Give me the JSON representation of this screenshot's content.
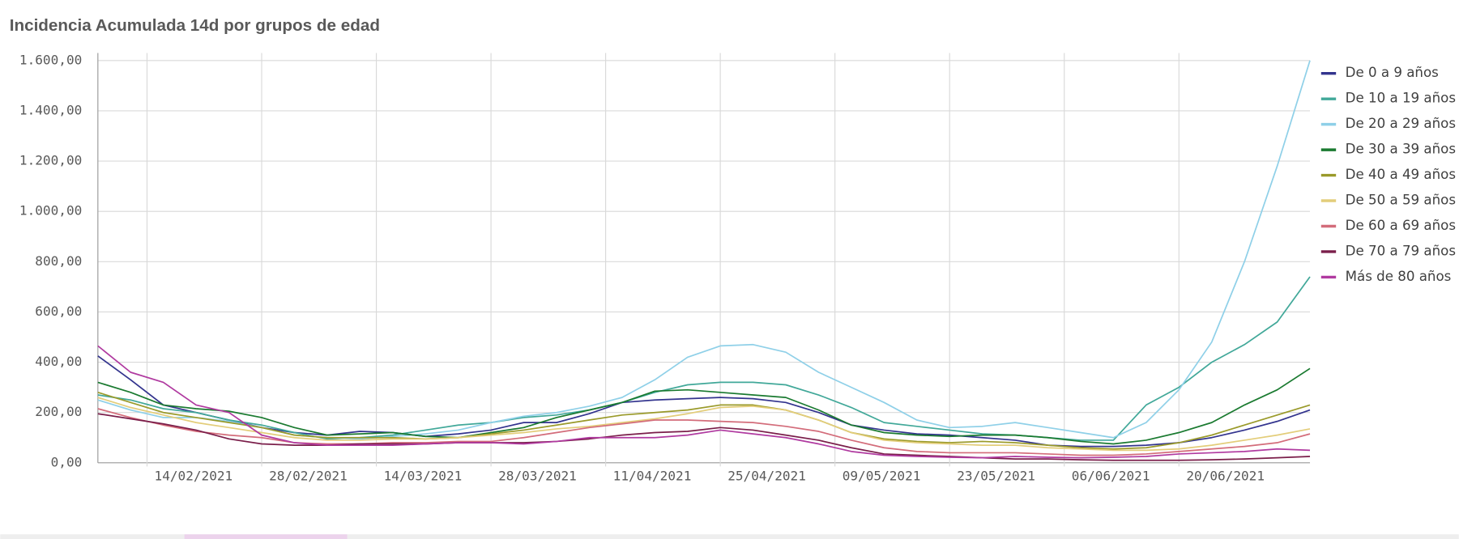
{
  "chart_data": {
    "type": "line",
    "title": "Incidencia Acumulada 14d por grupos de edad",
    "x": [
      "08/02/2021",
      "12/02/2021",
      "16/02/2021",
      "20/02/2021",
      "24/02/2021",
      "28/02/2021",
      "04/03/2021",
      "08/03/2021",
      "12/03/2021",
      "16/03/2021",
      "20/03/2021",
      "24/03/2021",
      "28/03/2021",
      "01/04/2021",
      "05/04/2021",
      "09/04/2021",
      "13/04/2021",
      "17/04/2021",
      "21/04/2021",
      "25/04/2021",
      "29/04/2021",
      "03/05/2021",
      "07/05/2021",
      "11/05/2021",
      "15/05/2021",
      "19/05/2021",
      "23/05/2021",
      "27/05/2021",
      "31/05/2021",
      "04/06/2021",
      "08/06/2021",
      "12/06/2021",
      "16/06/2021",
      "20/06/2021",
      "24/06/2021",
      "28/06/2021",
      "02/07/2021",
      "06/07/2021"
    ],
    "xlim": [
      "08/02/2021",
      "06/07/2021"
    ],
    "xticks": [
      "14/02/2021",
      "28/02/2021",
      "14/03/2021",
      "28/03/2021",
      "11/04/2021",
      "25/04/2021",
      "09/05/2021",
      "23/05/2021",
      "06/06/2021",
      "20/06/2021"
    ],
    "ylim": [
      0,
      1630
    ],
    "yticks": [
      {
        "value": 0,
        "label": "0,00"
      },
      {
        "value": 200,
        "label": "200,00"
      },
      {
        "value": 400,
        "label": "400,00"
      },
      {
        "value": 600,
        "label": "600,00"
      },
      {
        "value": 800,
        "label": "800,00"
      },
      {
        "value": 1000,
        "label": "1.000,00"
      },
      {
        "value": 1200,
        "label": "1.200,00"
      },
      {
        "value": 1400,
        "label": "1.400,00"
      },
      {
        "value": 1600,
        "label": "1.600,00"
      }
    ],
    "grid": true,
    "legend": "right",
    "series": [
      {
        "name": "De 0 a 9 años",
        "color": "#33348e",
        "values": [
          425,
          330,
          230,
          200,
          170,
          140,
          120,
          110,
          125,
          120,
          105,
          115,
          130,
          160,
          160,
          195,
          240,
          250,
          255,
          260,
          255,
          240,
          200,
          150,
          130,
          115,
          110,
          100,
          90,
          70,
          65,
          65,
          70,
          80,
          100,
          130,
          165,
          210
        ]
      },
      {
        "name": "De 10 a 19 años",
        "color": "#41a899",
        "values": [
          270,
          250,
          215,
          200,
          170,
          150,
          120,
          95,
          100,
          110,
          130,
          150,
          160,
          180,
          190,
          210,
          240,
          280,
          310,
          320,
          320,
          310,
          270,
          220,
          160,
          145,
          130,
          115,
          110,
          100,
          90,
          90,
          230,
          300,
          400,
          470,
          560,
          740
        ]
      },
      {
        "name": "De 20 a 29 años",
        "color": "#8fd0e8",
        "values": [
          250,
          210,
          180,
          180,
          165,
          140,
          110,
          100,
          95,
          105,
          115,
          130,
          160,
          185,
          200,
          225,
          260,
          330,
          420,
          465,
          470,
          440,
          360,
          300,
          240,
          170,
          140,
          145,
          160,
          140,
          120,
          100,
          160,
          290,
          480,
          800,
          1180,
          1600
        ]
      },
      {
        "name": "De 30 a 39 años",
        "color": "#1a7a30",
        "values": [
          320,
          280,
          230,
          215,
          205,
          180,
          140,
          110,
          115,
          120,
          105,
          100,
          120,
          140,
          180,
          210,
          240,
          285,
          290,
          280,
          270,
          260,
          210,
          150,
          120,
          110,
          105,
          110,
          110,
          100,
          85,
          75,
          90,
          120,
          160,
          230,
          290,
          375
        ]
      },
      {
        "name": "De 40 a 49 años",
        "color": "#9a9a2a",
        "values": [
          280,
          240,
          200,
          180,
          160,
          140,
          110,
          100,
          100,
          100,
          95,
          100,
          115,
          130,
          150,
          170,
          190,
          200,
          210,
          230,
          230,
          210,
          170,
          120,
          95,
          85,
          80,
          85,
          80,
          70,
          60,
          55,
          60,
          80,
          110,
          150,
          190,
          230
        ]
      },
      {
        "name": "De 50 a 59 años",
        "color": "#e3cd7a",
        "values": [
          260,
          220,
          190,
          160,
          140,
          120,
          100,
          90,
          90,
          95,
          95,
          100,
          110,
          120,
          135,
          145,
          160,
          175,
          195,
          220,
          225,
          210,
          170,
          120,
          90,
          80,
          75,
          70,
          70,
          60,
          55,
          50,
          50,
          55,
          70,
          90,
          110,
          135
        ]
      },
      {
        "name": "De 60 a 69 años",
        "color": "#d36c7a",
        "values": [
          215,
          180,
          150,
          125,
          110,
          100,
          80,
          75,
          75,
          80,
          80,
          85,
          85,
          100,
          120,
          140,
          155,
          170,
          170,
          165,
          160,
          145,
          125,
          90,
          60,
          45,
          40,
          40,
          40,
          35,
          30,
          30,
          35,
          45,
          55,
          65,
          80,
          115
        ]
      },
      {
        "name": "De 70 a 79 años",
        "color": "#7a1e4a",
        "values": [
          195,
          175,
          155,
          130,
          95,
          75,
          70,
          70,
          75,
          75,
          75,
          80,
          80,
          80,
          85,
          95,
          110,
          120,
          125,
          140,
          130,
          110,
          90,
          60,
          35,
          30,
          25,
          20,
          15,
          15,
          12,
          10,
          10,
          10,
          12,
          15,
          20,
          25
        ]
      },
      {
        "name": "Más de 80 años",
        "color": "#b03aa0",
        "values": [
          465,
          360,
          320,
          230,
          200,
          110,
          80,
          70,
          70,
          70,
          75,
          80,
          80,
          75,
          85,
          100,
          100,
          100,
          110,
          130,
          115,
          100,
          75,
          45,
          30,
          25,
          22,
          20,
          25,
          22,
          20,
          22,
          25,
          35,
          40,
          45,
          55,
          50
        ]
      }
    ]
  }
}
